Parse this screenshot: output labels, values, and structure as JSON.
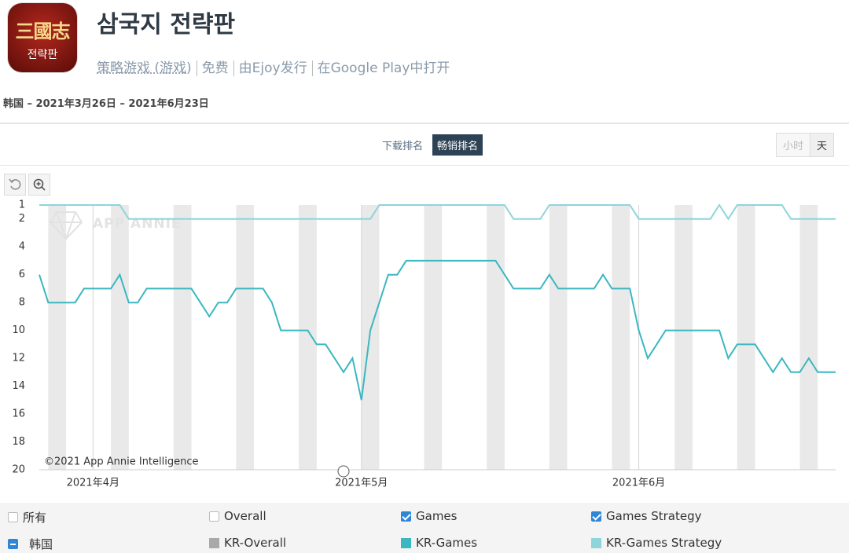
{
  "header": {
    "icon_text": [
      "三國志",
      "전략판"
    ],
    "title": "삼국지 전략판",
    "links": [
      "策略游戏 (游戏)",
      "免费",
      "由Ejoy发行",
      "在Google Play中打开"
    ],
    "date_range": "韩国 – 2021年3月26日 – 2021年6月23日"
  },
  "tabs": {
    "items": [
      "下载排名",
      "畅销排名"
    ],
    "active": 1
  },
  "granularity": {
    "items": [
      "小时",
      "天"
    ],
    "active": 1
  },
  "chart_data": {
    "type": "line",
    "watermark": "APP ANNIE",
    "credit": "©2021 App Annie Intelligence",
    "categories": [
      null,
      null,
      null,
      null,
      null,
      null,
      "2021年4月",
      null,
      null,
      null,
      null,
      null,
      null,
      null,
      null,
      null,
      null,
      null,
      null,
      null,
      null,
      null,
      null,
      null,
      null,
      null,
      null,
      null,
      null,
      null,
      null,
      null,
      null,
      null,
      null,
      null,
      "2021年5月",
      null,
      null,
      null,
      null,
      null,
      null,
      null,
      null,
      null,
      null,
      null,
      null,
      null,
      null,
      null,
      null,
      null,
      null,
      null,
      null,
      null,
      null,
      null,
      null,
      null,
      null,
      null,
      null,
      null,
      null,
      "2021年6月",
      null,
      null,
      null,
      null,
      null,
      null,
      null,
      null,
      null,
      null,
      null,
      null,
      null,
      null,
      null,
      null,
      null,
      null,
      null,
      null,
      null,
      null
    ],
    "series": [
      {
        "name": "KR-Games",
        "color": "#3bb7c0",
        "values": [
          6,
          8,
          8,
          8,
          8,
          7,
          7,
          7,
          7,
          6,
          8,
          8,
          7,
          7,
          7,
          7,
          7,
          7,
          8,
          9,
          8,
          8,
          7,
          7,
          7,
          7,
          8,
          10,
          10,
          10,
          10,
          11,
          11,
          12,
          13,
          12,
          15,
          10,
          8,
          6,
          6,
          5,
          5,
          5,
          5,
          5,
          5,
          5,
          5,
          5,
          5,
          5,
          6,
          7,
          7,
          7,
          7,
          6,
          7,
          7,
          7,
          7,
          7,
          6,
          7,
          7,
          7,
          10,
          12,
          11,
          10,
          10,
          10,
          10,
          10,
          10,
          10,
          12,
          11,
          11,
          11,
          12,
          13,
          12,
          13,
          13,
          12,
          13,
          13,
          13
        ]
      },
      {
        "name": "KR-Games Strategy",
        "color": "#8dd5db",
        "values": [
          1,
          1,
          1,
          1,
          1,
          1,
          1,
          1,
          1,
          1,
          2,
          2,
          2,
          2,
          2,
          2,
          2,
          2,
          2,
          2,
          2,
          2,
          2,
          2,
          2,
          2,
          2,
          2,
          2,
          2,
          2,
          2,
          2,
          2,
          2,
          2,
          2,
          2,
          1,
          1,
          1,
          1,
          1,
          1,
          1,
          1,
          1,
          1,
          1,
          1,
          1,
          1,
          1,
          2,
          2,
          2,
          2,
          1,
          1,
          1,
          1,
          1,
          1,
          1,
          1,
          1,
          1,
          2,
          2,
          2,
          2,
          2,
          2,
          2,
          2,
          2,
          1,
          2,
          1,
          1,
          1,
          1,
          1,
          1,
          2,
          2,
          2,
          2,
          2,
          2
        ]
      }
    ],
    "ylim": [
      1,
      20
    ],
    "y_reversed": true,
    "yticks": [
      1,
      2,
      4,
      6,
      8,
      10,
      12,
      14,
      16,
      18,
      20
    ],
    "grid": false
  },
  "filters": {
    "groups": [
      {
        "label": "所有",
        "checked": false
      },
      {
        "label": "Overall",
        "checked": false
      },
      {
        "label": "Games",
        "checked": true
      },
      {
        "label": "Games Strategy",
        "checked": true
      }
    ],
    "region": "韩国",
    "other_series": {
      "name": "KR-Overall",
      "color": "#a9a9a9"
    }
  }
}
